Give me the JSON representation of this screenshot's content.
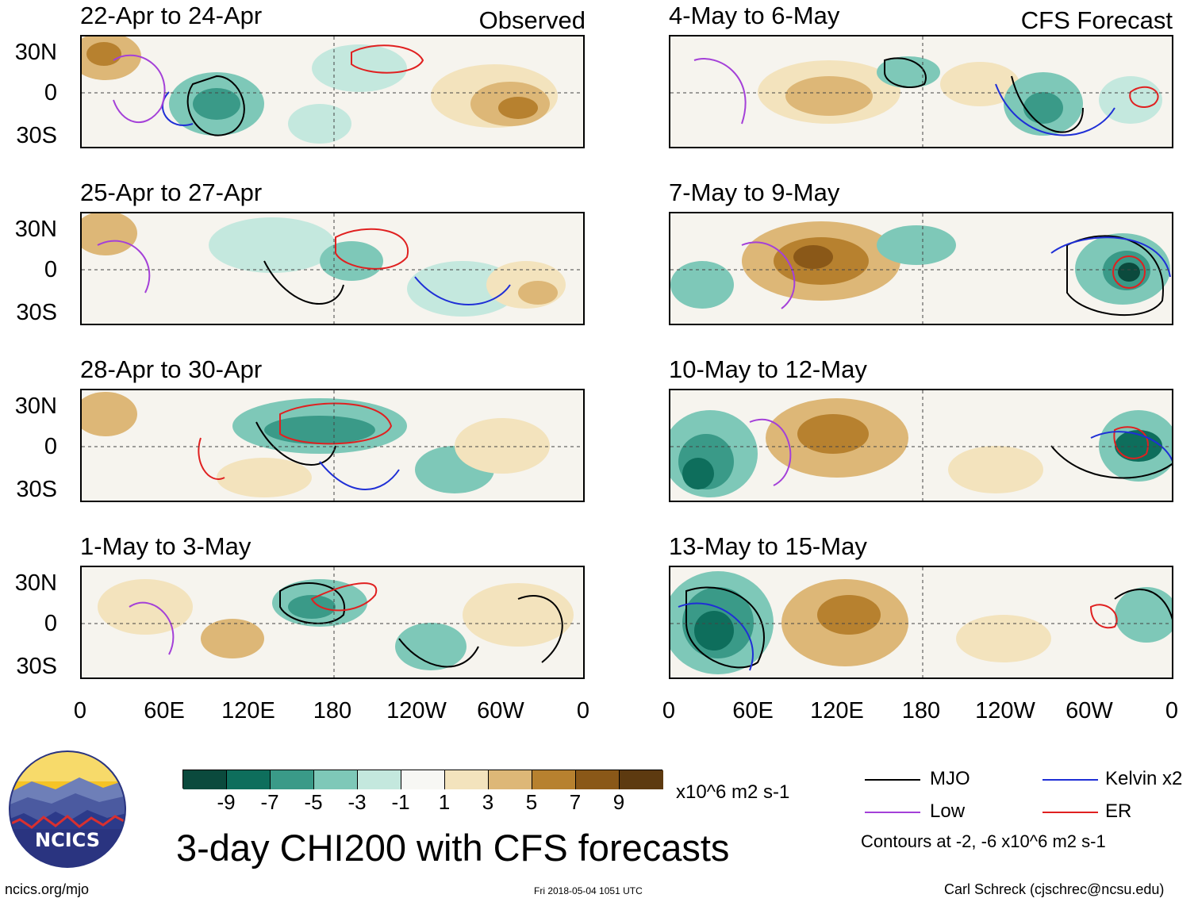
{
  "headers": {
    "left": "Observed",
    "right": "CFS Forecast"
  },
  "panels": {
    "left": [
      {
        "title": "22-Apr to 24-Apr"
      },
      {
        "title": "25-Apr to 27-Apr"
      },
      {
        "title": "28-Apr to 30-Apr"
      },
      {
        "title": "1-May to 3-May"
      }
    ],
    "right": [
      {
        "title": "4-May to 6-May"
      },
      {
        "title": "7-May to 9-May"
      },
      {
        "title": "10-May to 12-May"
      },
      {
        "title": "13-May to 15-May"
      }
    ]
  },
  "y_labels": [
    "30N",
    "0",
    "30S"
  ],
  "x_labels": [
    "0",
    "60E",
    "120E",
    "180",
    "120W",
    "60W",
    "0"
  ],
  "colorbar": {
    "units": "x10^6 m2 s-1",
    "labels": [
      "-9",
      "-7",
      "-5",
      "-3",
      "-1",
      "1",
      "3",
      "5",
      "7",
      "9"
    ],
    "colors": [
      "#0b4a3d",
      "#0e6e5c",
      "#3a9a88",
      "#7ec8b8",
      "#c4e8de",
      "#f7f7f4",
      "#f3e3bd",
      "#ddb777",
      "#b7812f",
      "#8a5818",
      "#5d3a10"
    ]
  },
  "legend": {
    "items": [
      {
        "label": "MJO",
        "color": "#000000"
      },
      {
        "label": "Kelvin x2",
        "color": "#1f2fd6"
      },
      {
        "label": "Low",
        "color": "#a440d8"
      },
      {
        "label": "ER",
        "color": "#e02020"
      }
    ],
    "contours_note": "Contours at -2, -6 x10^6 m2 s-1"
  },
  "logo": {
    "text": "NCICS"
  },
  "main_title": "3-day CHI200 with CFS forecasts",
  "footer": {
    "url": "ncics.org/mjo",
    "timestamp": "Fri 2018-05-04 1051 UTC",
    "author": "Carl Schreck (cjschrec@ncsu.edu)"
  }
}
